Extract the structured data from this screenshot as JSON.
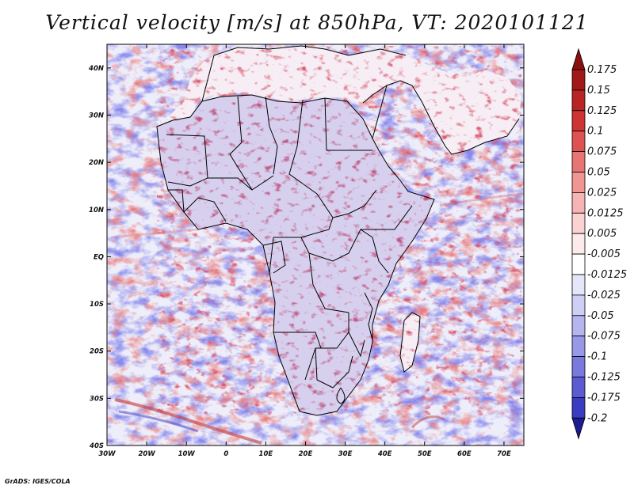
{
  "title": "Vertical velocity [m/s] at 850hPa, VT: 2020101121",
  "credit": "GrADS: IGES/COLA",
  "map": {
    "lon_range": [
      -30,
      75
    ],
    "lat_range": [
      -40,
      45
    ],
    "lon_ticks": [
      {
        "value": -30,
        "label": "30W"
      },
      {
        "value": -20,
        "label": "20W"
      },
      {
        "value": -10,
        "label": "10W"
      },
      {
        "value": 0,
        "label": "0"
      },
      {
        "value": 10,
        "label": "10E"
      },
      {
        "value": 20,
        "label": "20E"
      },
      {
        "value": 30,
        "label": "30E"
      },
      {
        "value": 40,
        "label": "40E"
      },
      {
        "value": 50,
        "label": "50E"
      },
      {
        "value": 60,
        "label": "60E"
      },
      {
        "value": 70,
        "label": "70E"
      }
    ],
    "lat_ticks": [
      {
        "value": 40,
        "label": "40N"
      },
      {
        "value": 30,
        "label": "30N"
      },
      {
        "value": 20,
        "label": "20N"
      },
      {
        "value": 10,
        "label": "10N"
      },
      {
        "value": 0,
        "label": "EQ"
      },
      {
        "value": -10,
        "label": "10S"
      },
      {
        "value": -20,
        "label": "20S"
      },
      {
        "value": -30,
        "label": "30S"
      },
      {
        "value": -40,
        "label": "40S"
      }
    ]
  },
  "colorbar": {
    "levels": [
      {
        "label": "0.175",
        "color": "#a01818"
      },
      {
        "label": "0.15",
        "color": "#b92424"
      },
      {
        "label": "0.125",
        "color": "#cf3434"
      },
      {
        "label": "0.1",
        "color": "#de5252"
      },
      {
        "label": "0.075",
        "color": "#e97474"
      },
      {
        "label": "0.05",
        "color": "#f19494"
      },
      {
        "label": "0.025",
        "color": "#f6b4b4"
      },
      {
        "label": "0.0125",
        "color": "#fad2d2"
      },
      {
        "label": "0.005",
        "color": "#fdeaea"
      },
      {
        "label": "-0.005",
        "color": "#ffffff"
      },
      {
        "label": "-0.0125",
        "color": "#e6e6fb"
      },
      {
        "label": "-0.025",
        "color": "#cfcff6"
      },
      {
        "label": "-0.05",
        "color": "#b5b5f0"
      },
      {
        "label": "-0.075",
        "color": "#9898e9"
      },
      {
        "label": "-0.1",
        "color": "#7979de"
      },
      {
        "label": "-0.125",
        "color": "#5c5cd2"
      },
      {
        "label": "-0.175",
        "color": "#3c3cc2"
      },
      {
        "label": "-0.2",
        "color": "#2828a8"
      }
    ],
    "top_color": "#8a1010",
    "bottom_color": "#1c1c90"
  },
  "colors": {
    "up": "#c42a2a",
    "down": "#3a3ac4",
    "border": "#000000"
  }
}
